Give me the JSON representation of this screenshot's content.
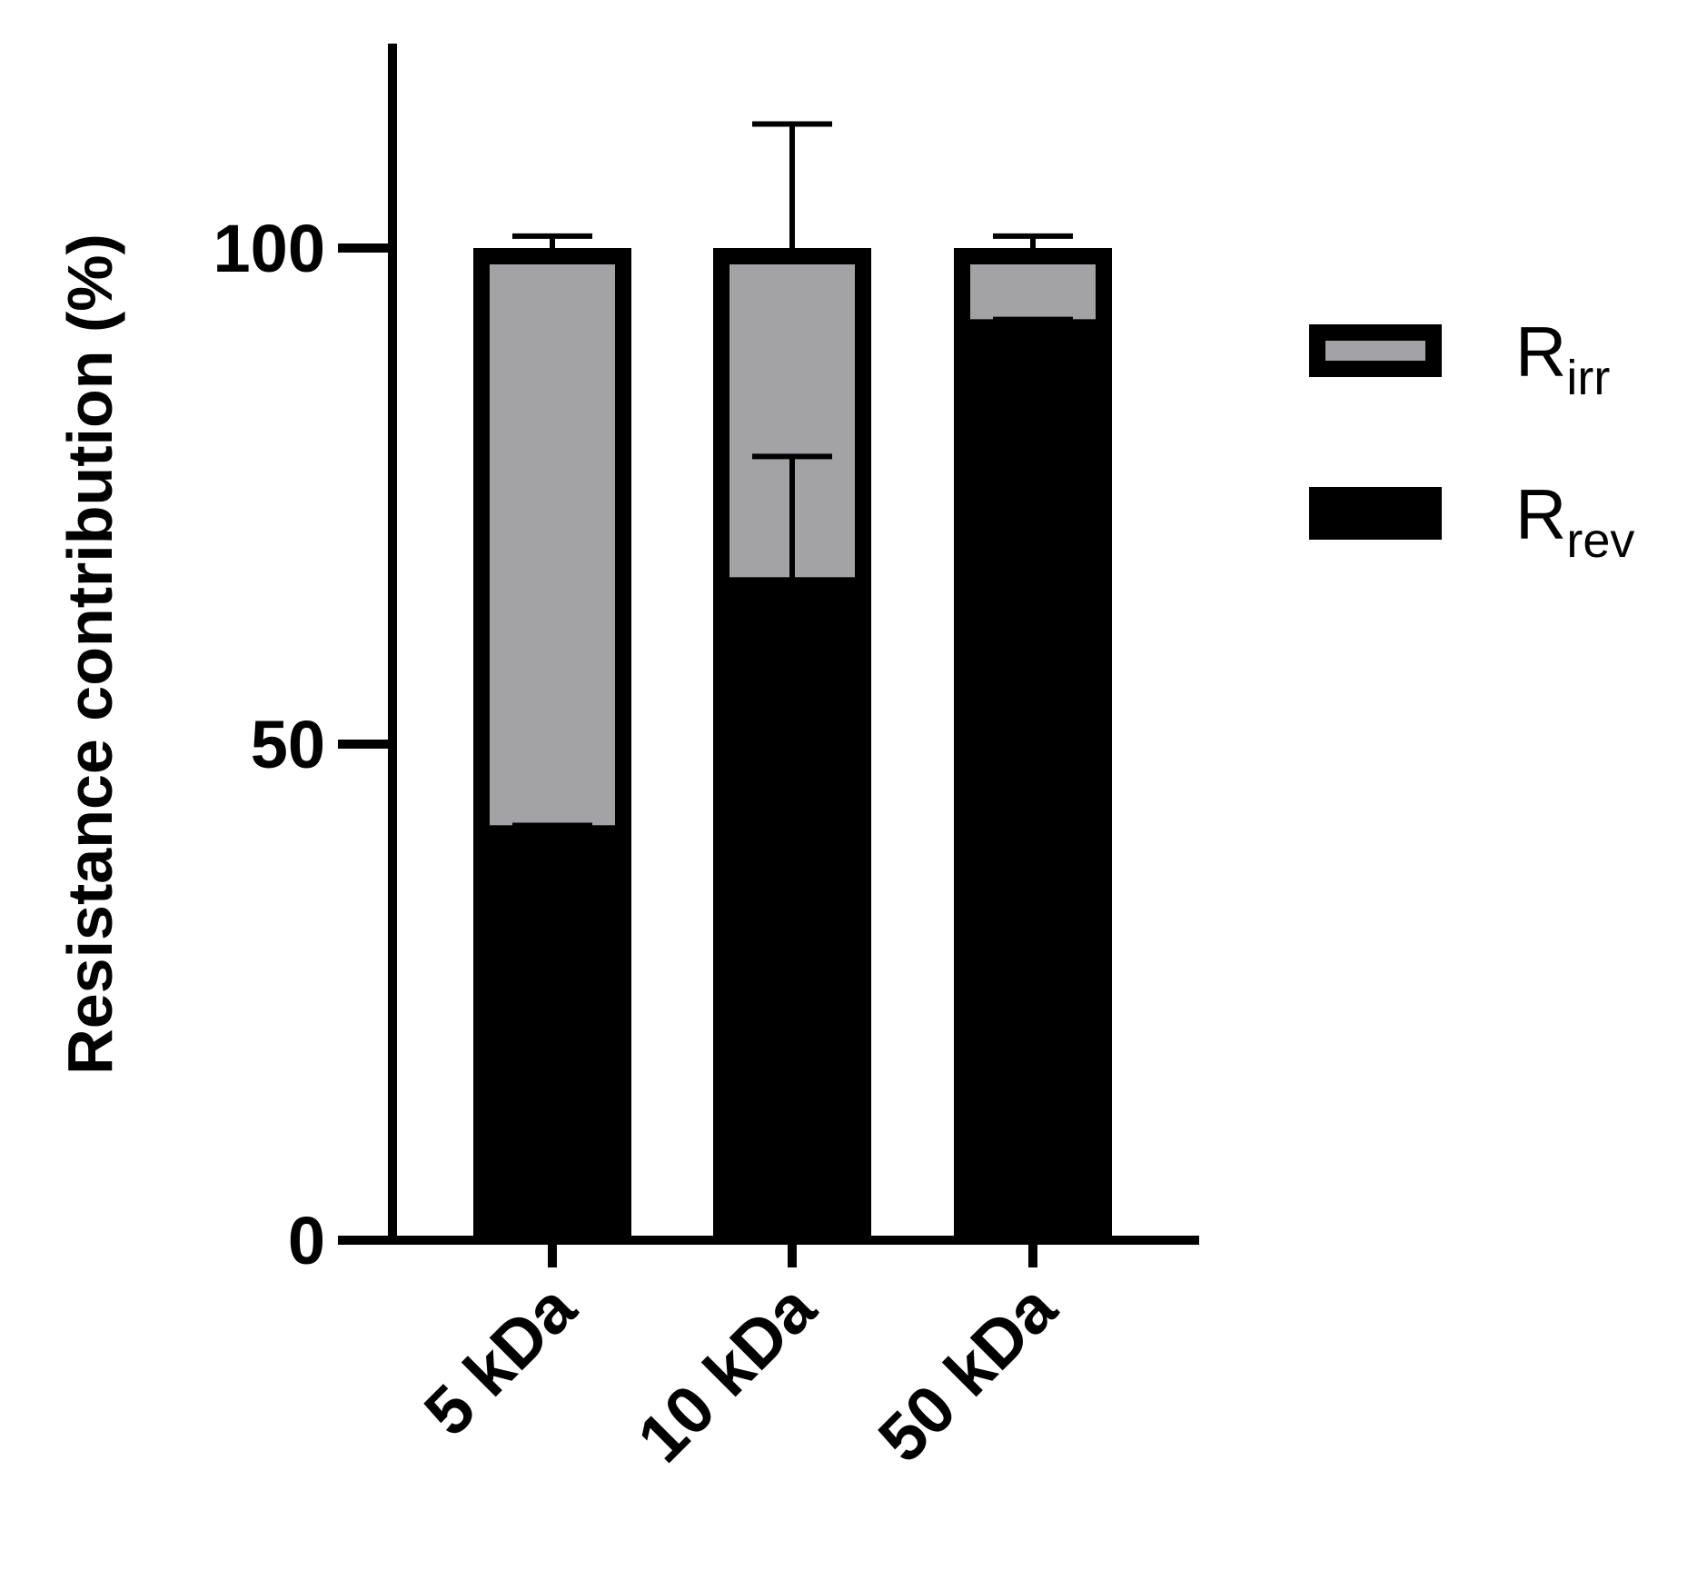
{
  "chart_data": {
    "type": "bar",
    "stacked": true,
    "categories": [
      "5 kDa",
      "10 kDa",
      "50 kDa"
    ],
    "ylabel": "Resistance contribution (%)",
    "ylim": [
      0,
      120
    ],
    "yticks": [
      0,
      50,
      100
    ],
    "series": [
      {
        "name_main": "R",
        "name_sub": "rev",
        "values": [
          41,
          66,
          92
        ],
        "error": [
          0.8,
          13,
          0.8
        ],
        "color": "#000000"
      },
      {
        "name_main": "R",
        "name_sub": "irr",
        "values": [
          59,
          34,
          8
        ],
        "error": [
          1.2,
          12.5,
          1.2
        ],
        "color": "#a3a3a6"
      }
    ],
    "legend_position": "right",
    "grid": false
  }
}
